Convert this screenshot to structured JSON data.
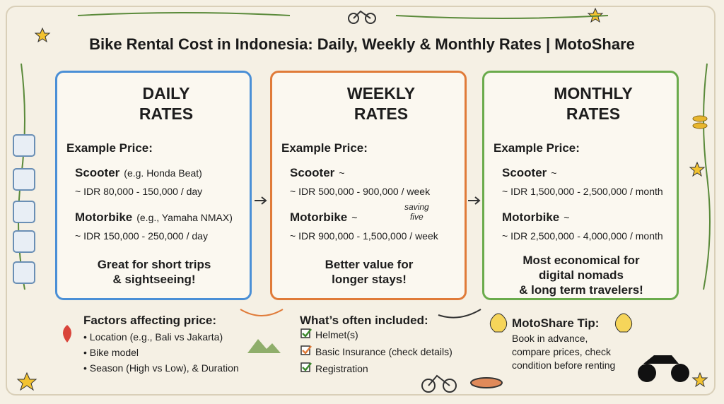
{
  "header": {
    "title": "Bike Rental Cost in Indonesia: Daily, Weekly & Monthly Rates | MotoShare"
  },
  "cards": [
    {
      "heading": [
        "DAILY",
        "RATES"
      ],
      "example_label": "Example Price:",
      "items": [
        {
          "name": "Scooter",
          "detail": "(e.g. Honda Beat)",
          "price": "~ IDR 80,000 - 150,000 / day"
        },
        {
          "name": "Motorbike",
          "detail": "(e.g., Yamaha NMAX)",
          "price": "~ IDR 150,000 - 250,000 / day"
        }
      ],
      "note": [
        "Great for short trips",
        "& sightseeing!"
      ]
    },
    {
      "heading": [
        "WEEKLY",
        "RATES"
      ],
      "example_label": "Example Price:",
      "items": [
        {
          "name": "Scooter",
          "detail": "~",
          "price": "~ IDR 500,000 - 900,000 / week"
        },
        {
          "name": "Motorbike",
          "detail": "~",
          "price": "~ IDR 900,000 - 1,500,000 / week"
        }
      ],
      "annotation": [
        "saving",
        "five"
      ],
      "note": [
        "Better value for",
        "longer stays!"
      ]
    },
    {
      "heading": [
        "MONTHLY",
        "RATES"
      ],
      "example_label": "Example Price:",
      "items": [
        {
          "name": "Scooter",
          "detail": "~",
          "price": "~ IDR 1,500,000 - 2,500,000 / month"
        },
        {
          "name": "Motorbike",
          "detail": "~",
          "price": "~ IDR 2,500,000 - 4,000,000 / month"
        }
      ],
      "note": [
        "Most economical for",
        "digital nomads",
        "& long term travelers!"
      ]
    }
  ],
  "factors": {
    "title": "Factors affecting price:",
    "items": [
      "• Location (e.g., Bali vs Jakarta)",
      "• Bike model",
      "• Season (High vs Low), & Duration"
    ]
  },
  "included": {
    "title": "What’s often included:",
    "items": [
      "Helmet(s)",
      "Basic Insurance (check details)",
      "Registration"
    ]
  },
  "tip": {
    "title": "MotoShare Tip:",
    "lines": [
      "Book in advance,",
      "compare prices, check",
      "condition before renting"
    ]
  }
}
